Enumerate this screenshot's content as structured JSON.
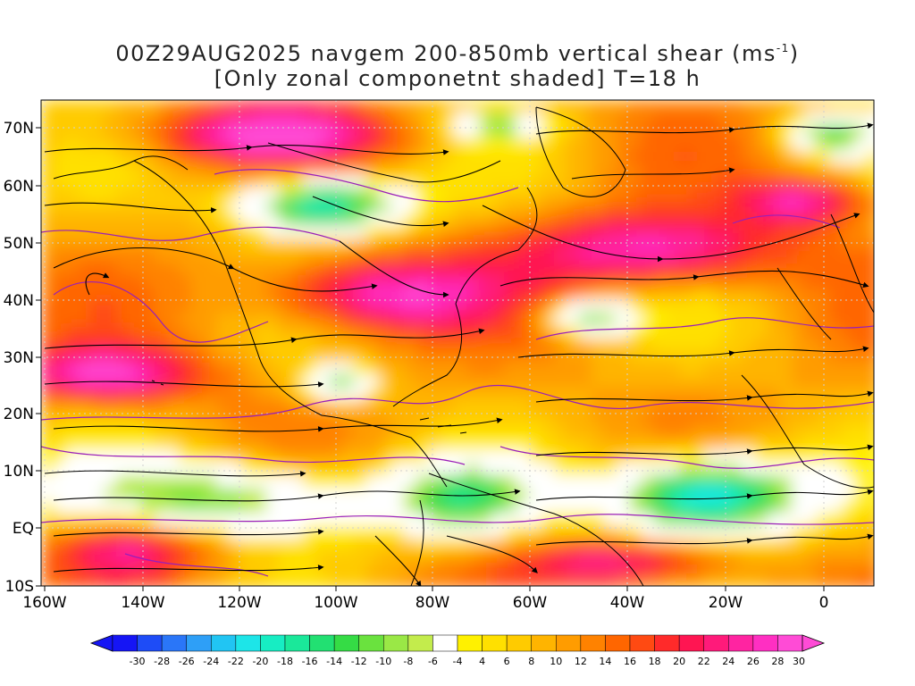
{
  "title": {
    "line1_prefix": "00Z29AUG2025 navgem 200-850mb vertical shear (ms",
    "line1_sup": "-1",
    "line1_suffix": ")",
    "line2": "[Only zonal componetnt shaded] T=18 h"
  },
  "lat_labels": [
    "70N",
    "60N",
    "50N",
    "40N",
    "30N",
    "20N",
    "10N",
    "EQ",
    "10S"
  ],
  "lon_labels": [
    "160W",
    "140W",
    "120W",
    "100W",
    "80W",
    "60W",
    "40W",
    "20W",
    "0"
  ],
  "colorbar": {
    "labels": [
      "-30",
      "-28",
      "-26",
      "-24",
      "-22",
      "-20",
      "-18",
      "-16",
      "-14",
      "-12",
      "-10",
      "-8",
      "-6",
      "-4",
      "4",
      "6",
      "8",
      "10",
      "12",
      "14",
      "16",
      "18",
      "20",
      "22",
      "24",
      "26",
      "28",
      "30"
    ],
    "colors": [
      "#1515f5",
      "#1e4cf7",
      "#2a76f8",
      "#2e9ff7",
      "#21c5f3",
      "#1de5e8",
      "#17edc3",
      "#1ae89a",
      "#22e072",
      "#35dc45",
      "#6ae23e",
      "#9ae846",
      "#c3ec4c",
      "#ffffff",
      "#fff100",
      "#ffe000",
      "#ffcb00",
      "#ffb400",
      "#ff9c00",
      "#ff8200",
      "#ff6600",
      "#ff4a12",
      "#ff2a2a",
      "#ff1552",
      "#ff1a7a",
      "#ff24a1",
      "#ff2fc2",
      "#ff4bd6"
    ]
  },
  "colors": {
    "background": "#ffffff",
    "coastline": "#000000",
    "contour": "#9a1fb8",
    "streamline": "#000000",
    "grid": "#d0d0d0"
  }
}
